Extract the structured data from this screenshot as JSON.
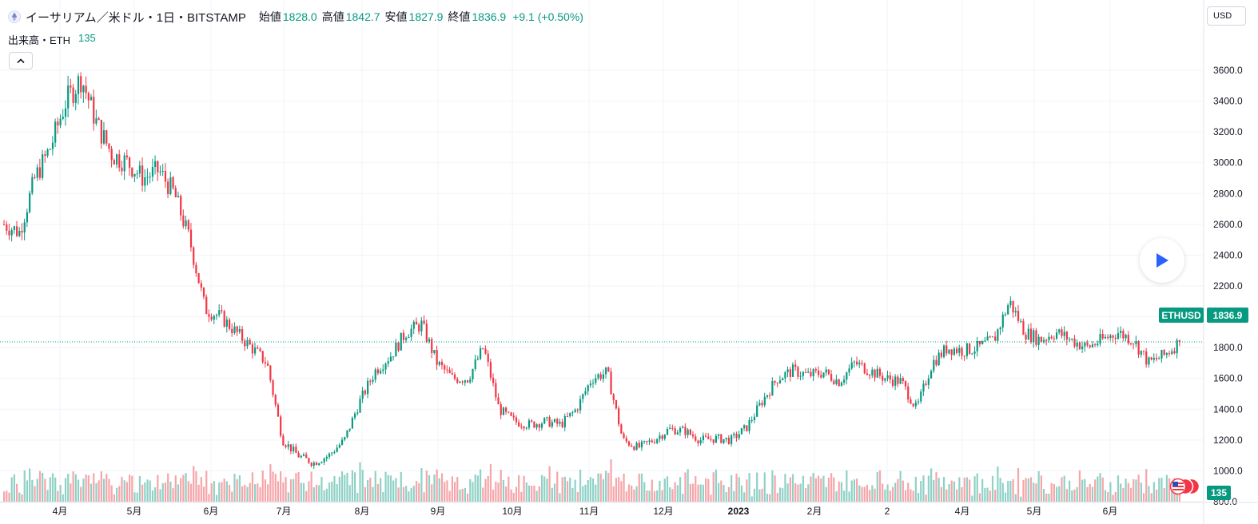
{
  "header": {
    "symbol_name": "イーサリアム／米ドル・1日・BITSTAMP",
    "open_label": "始値",
    "open_value": "1828.0",
    "high_label": "高値",
    "high_value": "1842.7",
    "low_label": "安値",
    "low_value": "1827.9",
    "close_label": "終値",
    "close_value": "1836.9",
    "change": "+9.1 (+0.50%)"
  },
  "volume_legend": {
    "label": "出来高・ETH",
    "value": "135"
  },
  "currency_button": "USD",
  "last_price_tag": {
    "symbol": "ETHUSD",
    "value": "1836.9"
  },
  "volume_tag": "135",
  "colors": {
    "up": "#089981",
    "down": "#f23645",
    "vol_up": "#8fd1c6",
    "vol_down": "#f6a5a9",
    "grid": "#f0f3fa",
    "accent": "#2962ff"
  },
  "icons": {
    "symbol": "ethereum-icon",
    "collapse": "chevron-up-icon",
    "play": "play-icon",
    "events": "us-flag-icon"
  },
  "chart_data": {
    "type": "candlestick",
    "y_axis": {
      "range": [
        770,
        3660
      ],
      "ticks": [
        "800.0",
        "1000.0",
        "1200.0",
        "1400.0",
        "1600.0",
        "1800.0",
        "2000.0",
        "2200.0",
        "2400.0",
        "2600.0",
        "2800.0",
        "3000.0",
        "3200.0",
        "3400.0",
        "3600.0"
      ]
    },
    "x_axis": {
      "labels": [
        "4月",
        "5月",
        "6月",
        "7月",
        "8月",
        "9月",
        "10月",
        "11月",
        "12月",
        "2023",
        "2月",
        "2",
        "4月",
        "5月",
        "6月"
      ]
    },
    "series": [
      {
        "name": "イーサリアム／米ドル",
        "type": "ohlc",
        "approx_daily_close_path": [
          2600,
          2550,
          2900,
          3100,
          3400,
          3550,
          3250,
          3050,
          3000,
          2900,
          2950,
          2800,
          2500,
          2050,
          2000,
          1900,
          1800,
          1700,
          1200,
          1100,
          1050,
          1100,
          1200,
          1450,
          1650,
          1750,
          1900,
          1950,
          1700,
          1600,
          1600,
          1800,
          1400,
          1320,
          1300,
          1320,
          1300,
          1400,
          1600,
          1640,
          1200,
          1150,
          1200,
          1270,
          1260,
          1200,
          1210,
          1200,
          1280,
          1450,
          1600,
          1650,
          1620,
          1640,
          1580,
          1700,
          1650,
          1600,
          1580,
          1400,
          1700,
          1800,
          1780,
          1800,
          1850,
          2100,
          1900,
          1850,
          1900,
          1850,
          1800,
          1850,
          1900,
          1850,
          1700,
          1750,
          1836.9
        ]
      },
      {
        "name": "出来高",
        "type": "volume"
      }
    ]
  }
}
